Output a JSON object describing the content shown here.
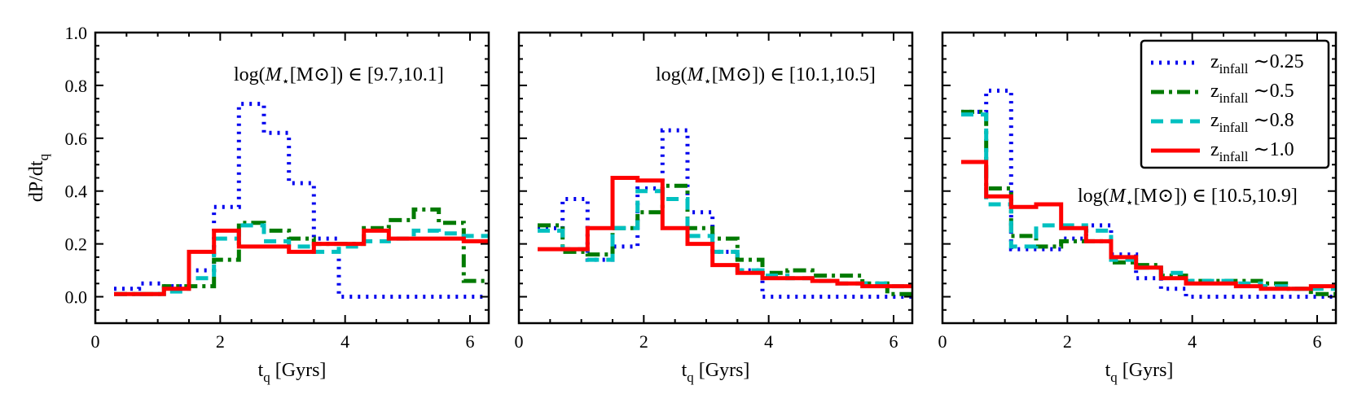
{
  "chart_data": {
    "type": "line",
    "style": "step",
    "ylabel": "dP/dt",
    "ylabel_sub": "q",
    "ylim": [
      -0.1,
      1.0
    ],
    "yticks": [
      0.0,
      0.2,
      0.4,
      0.6,
      0.8,
      1.0
    ],
    "ytick_labels": [
      "0.0",
      "0.2",
      "0.4",
      "0.6",
      "0.8",
      "1.0"
    ],
    "xlim": [
      0,
      6.3
    ],
    "xticks": [
      0,
      2,
      4,
      6
    ],
    "xtick_labels": [
      "0",
      "2",
      "4",
      "6"
    ],
    "xlabel_main": "t",
    "xlabel_sub": "q",
    "xlabel_rest": " [Gyrs]",
    "bin_edges": [
      0.3,
      0.7,
      1.1,
      1.5,
      1.9,
      2.3,
      2.7,
      3.1,
      3.5,
      3.9,
      4.3,
      4.7,
      5.1,
      5.5,
      5.9,
      6.3
    ],
    "legend": {
      "position": "top-right",
      "entries": [
        {
          "series": 0,
          "text_main": "z",
          "text_sub": "infall",
          "text_rest": " ∼0.25"
        },
        {
          "series": 1,
          "text_main": "z",
          "text_sub": "infall",
          "text_rest": " ∼0.5"
        },
        {
          "series": 2,
          "text_main": "z",
          "text_sub": "infall",
          "text_rest": " ∼0.8"
        },
        {
          "series": 3,
          "text_main": "z",
          "text_sub": "infall",
          "text_rest": " ∼1.0"
        }
      ]
    },
    "series_styles": [
      {
        "name": "z_infall ~0.25",
        "color": "#0000ee",
        "dash": "dotted"
      },
      {
        "name": "z_infall ~0.5",
        "color": "#007a00",
        "dash": "dashdot"
      },
      {
        "name": "z_infall ~0.8",
        "color": "#00c0c0",
        "dash": "dashed"
      },
      {
        "name": "z_infall ~1.0",
        "color": "#ff0000",
        "dash": "solid"
      }
    ],
    "panels": [
      {
        "annotation": "log(M⋆[M⊙]) ∈ [9.7,10.1]",
        "ann_prefix": "log(",
        "ann_M": "M",
        "ann_star": "⋆",
        "ann_unit": "[M⊙]) ∈ ",
        "ann_range": "[9.7,10.1]",
        "series": [
          {
            "name": "z_infall ~0.25",
            "values": [
              0.03,
              0.05,
              0.04,
              0.1,
              0.34,
              0.73,
              0.62,
              0.43,
              0.22,
              0.0,
              0.0,
              0.0,
              0.0,
              0.0,
              0.0
            ]
          },
          {
            "name": "z_infall ~0.5",
            "values": [
              0.01,
              0.01,
              0.04,
              0.04,
              0.14,
              0.28,
              0.25,
              0.22,
              0.2,
              0.2,
              0.26,
              0.29,
              0.33,
              0.28,
              0.06
            ]
          },
          {
            "name": "z_infall ~0.8",
            "values": [
              0.01,
              0.01,
              0.02,
              0.07,
              0.22,
              0.27,
              0.21,
              0.19,
              0.17,
              0.19,
              0.21,
              0.22,
              0.25,
              0.24,
              0.23
            ]
          },
          {
            "name": "z_infall ~1.0",
            "values": [
              0.01,
              0.01,
              0.03,
              0.17,
              0.25,
              0.19,
              0.19,
              0.17,
              0.2,
              0.2,
              0.25,
              0.22,
              0.22,
              0.22,
              0.21
            ]
          }
        ]
      },
      {
        "annotation": "log(M⋆[M⊙]) ∈ [10.1,10.5]",
        "ann_prefix": "log(",
        "ann_M": "M",
        "ann_star": "⋆",
        "ann_unit": "[M⊙]) ∈ ",
        "ann_range": "[10.1,10.5]",
        "series": [
          {
            "name": "z_infall ~0.25",
            "values": [
              0.26,
              0.37,
              0.14,
              0.19,
              0.41,
              0.63,
              0.32,
              0.17,
              0.1,
              0.0,
              0.0,
              0.0,
              0.0,
              0.0,
              0.0
            ]
          },
          {
            "name": "z_infall ~0.5",
            "values": [
              0.27,
              0.17,
              0.16,
              0.26,
              0.32,
              0.42,
              0.26,
              0.22,
              0.14,
              0.09,
              0.1,
              0.08,
              0.08,
              0.05,
              0.01
            ]
          },
          {
            "name": "z_infall ~0.8",
            "values": [
              0.25,
              0.18,
              0.14,
              0.26,
              0.4,
              0.37,
              0.23,
              0.17,
              0.1,
              0.08,
              0.07,
              0.06,
              0.05,
              0.05,
              0.04
            ]
          },
          {
            "name": "z_infall ~1.0",
            "values": [
              0.18,
              0.18,
              0.26,
              0.45,
              0.44,
              0.26,
              0.2,
              0.12,
              0.09,
              0.07,
              0.07,
              0.06,
              0.05,
              0.04,
              0.04
            ]
          }
        ]
      },
      {
        "annotation": "log(M⋆[M⊙]) ∈ [10.5,10.9]",
        "ann_prefix": "log(",
        "ann_M": "M",
        "ann_star": "⋆",
        "ann_unit": "[M⊙]) ∈ ",
        "ann_range": "[10.5,10.9]",
        "series": [
          {
            "name": "z_infall ~0.25",
            "values": [
              0.7,
              0.78,
              0.18,
              0.18,
              0.22,
              0.27,
              0.16,
              0.07,
              0.03,
              0.0,
              0.0,
              0.0,
              0.0,
              0.0,
              0.0
            ]
          },
          {
            "name": "z_infall ~0.5",
            "values": [
              0.7,
              0.41,
              0.23,
              0.19,
              0.21,
              0.21,
              0.13,
              0.12,
              0.08,
              0.06,
              0.06,
              0.06,
              0.05,
              0.03,
              0.01
            ]
          },
          {
            "name": "z_infall ~0.8",
            "values": [
              0.69,
              0.35,
              0.19,
              0.27,
              0.27,
              0.25,
              0.14,
              0.11,
              0.09,
              0.06,
              0.06,
              0.05,
              0.04,
              0.03,
              0.03
            ]
          },
          {
            "name": "z_infall ~1.0",
            "values": [
              0.51,
              0.38,
              0.34,
              0.35,
              0.26,
              0.21,
              0.15,
              0.11,
              0.07,
              0.05,
              0.05,
              0.04,
              0.03,
              0.03,
              0.04
            ]
          }
        ]
      }
    ]
  }
}
